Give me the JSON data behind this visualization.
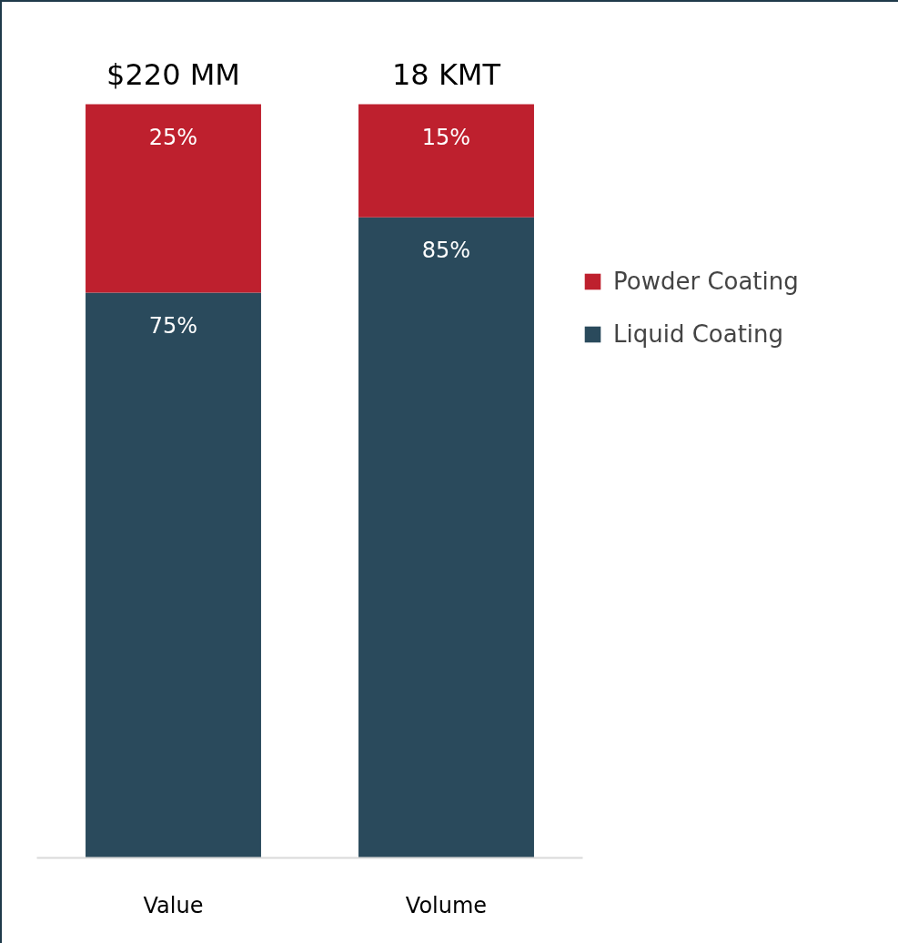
{
  "chart_data": {
    "type": "bar",
    "stacked": true,
    "categories": [
      "Value",
      "Volume"
    ],
    "series": [
      {
        "name": "Liquid Coating",
        "color": "#2a4a5c",
        "values": [
          75,
          85
        ],
        "value_labels": [
          "75%",
          "85%"
        ]
      },
      {
        "name": "Powder Coating",
        "color": "#be202e",
        "values": [
          25,
          15
        ],
        "value_labels": [
          "25%",
          "15%"
        ]
      }
    ],
    "annotations": [
      {
        "text": "$220 MM",
        "x": "Value",
        "y": 100
      },
      {
        "text": "18 KMT",
        "x": "Volume",
        "y": 100
      }
    ],
    "legend": "right",
    "grid": false
  }
}
